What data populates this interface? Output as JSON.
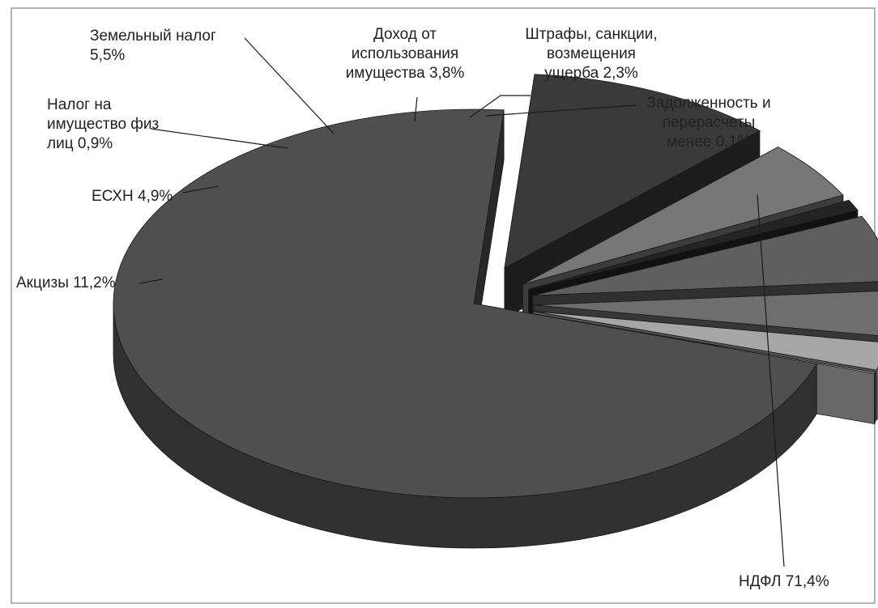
{
  "chart_data": {
    "type": "pie",
    "title": "",
    "categories": [
      "НДФЛ",
      "Акцизы",
      "ЕСХН",
      "Налог на имущество физ лиц",
      "Земельный налог",
      "Доход от использования имущества",
      "Штрафы, санкции, возмещения ущерба",
      "Задолженность и перерасчеты менее"
    ],
    "values": [
      71.4,
      11.2,
      4.9,
      0.9,
      5.5,
      3.8,
      2.3,
      0.1
    ],
    "exploded": true,
    "three_d": true,
    "legend": "none",
    "data_labels": [
      {
        "lines": [
          "НДФЛ 71,4%"
        ]
      },
      {
        "lines": [
          "Акцизы 11,2%"
        ]
      },
      {
        "lines": [
          "ЕСХН 4,9%"
        ]
      },
      {
        "lines": [
          "Налог на",
          "имущество физ",
          "лиц 0,9%"
        ]
      },
      {
        "lines": [
          "Земельный налог",
          "5,5%"
        ]
      },
      {
        "lines": [
          "Доход от",
          "использования",
          "имущества 3,8%"
        ]
      },
      {
        "lines": [
          "Штрафы, санкции,",
          "возмещения",
          "ущерба 2,3%"
        ]
      },
      {
        "lines": [
          "Задолженность и",
          "перерасчеты",
          "менее 0,1%"
        ]
      }
    ],
    "colors": {
      "НДФЛ": "#4f4f4f",
      "Акцизы": "#3a3a3a",
      "ЕСХН": "#777777",
      "Налог на имущество физ лиц": "#242424",
      "Земельный налог": "#5f5f5f",
      "Доход от использования имущества": "#6e6e6e",
      "Штрафы, санкции, возмещения ущерба": "#a6a6a6",
      "Задолженность и перерасчеты менее": "#d0d0d0"
    }
  }
}
